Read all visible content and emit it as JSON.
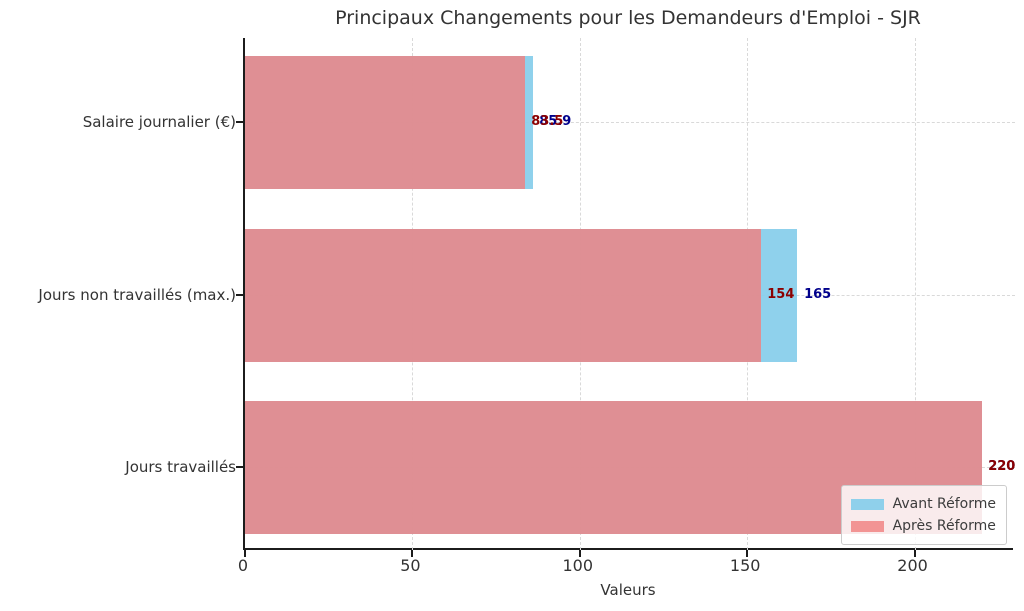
{
  "chart_data": {
    "type": "bar",
    "orientation": "horizontal",
    "title": "Principaux Changements pour les Demandeurs d'Emploi - SJR",
    "xlabel": "Valeurs",
    "categories": [
      "Salaire journalier (€)",
      "Jours non travaillés (max.)",
      "Jours travaillés"
    ],
    "series": [
      {
        "name": "Avant Réforme",
        "color": "#87CEEB",
        "label_color": "#00008B",
        "values": [
          85.9,
          165,
          220
        ],
        "value_labels": [
          "85.9",
          "165",
          "220"
        ]
      },
      {
        "name": "Après Réforme",
        "color": "#F08080",
        "label_color": "#8B0000",
        "values": [
          83.5,
          154,
          220
        ],
        "value_labels": [
          "83.5",
          "154",
          "220"
        ]
      }
    ],
    "x_ticks": [
      "0",
      "50",
      "100",
      "150",
      "200"
    ],
    "x_tick_values": [
      0,
      50,
      100,
      150,
      200
    ],
    "xlim": [
      0,
      230
    ],
    "grid": "dashed",
    "legend_position": "lower right",
    "spine_color": "#1c1c1c",
    "grid_color": "#d9d9d9",
    "text_color": "#333333"
  }
}
